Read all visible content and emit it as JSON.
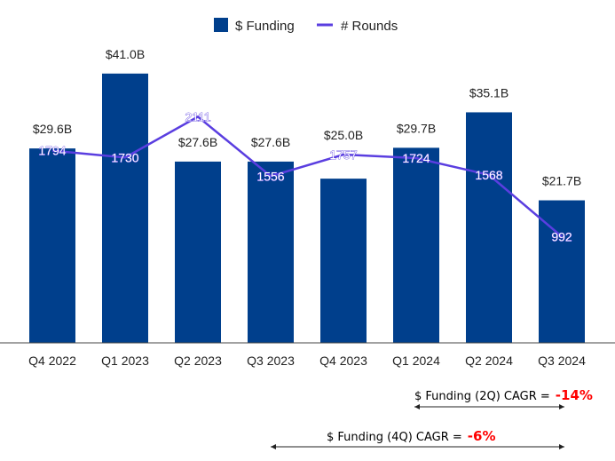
{
  "chart_data": {
    "type": "bar",
    "categories": [
      "Q4 2022",
      "Q1 2023",
      "Q2 2023",
      "Q3 2023",
      "Q4 2023",
      "Q1 2024",
      "Q2 2024",
      "Q3 2024"
    ],
    "series": [
      {
        "name": "$ Funding",
        "kind": "bar",
        "unit": "$B",
        "values": [
          29.6,
          41.0,
          27.6,
          27.6,
          25.0,
          29.7,
          35.1,
          21.7
        ],
        "labels": [
          "$29.6B",
          "$41.0B",
          "$27.6B",
          "$27.6B",
          "$25.0B",
          "$29.7B",
          "$35.1B",
          "$21.7B"
        ],
        "color": "#003f8c"
      },
      {
        "name": "# Rounds",
        "kind": "line",
        "values": [
          1794,
          1730,
          2111,
          1556,
          1757,
          1724,
          1568,
          992
        ],
        "color": "#5a3ee0"
      }
    ],
    "ylim_funding": [
      0,
      52.2
    ],
    "ylim_rounds": [
      0,
      3200
    ],
    "legend": [
      "$ Funding",
      "# Rounds"
    ],
    "legend_position": "top-center",
    "grid": false
  },
  "annotations": {
    "cagr_2q": {
      "label": "$ Funding (2Q) CAGR =",
      "value": "-14%"
    },
    "cagr_4q": {
      "label": "$ Funding (4Q) CAGR =",
      "value": "-6%"
    }
  }
}
